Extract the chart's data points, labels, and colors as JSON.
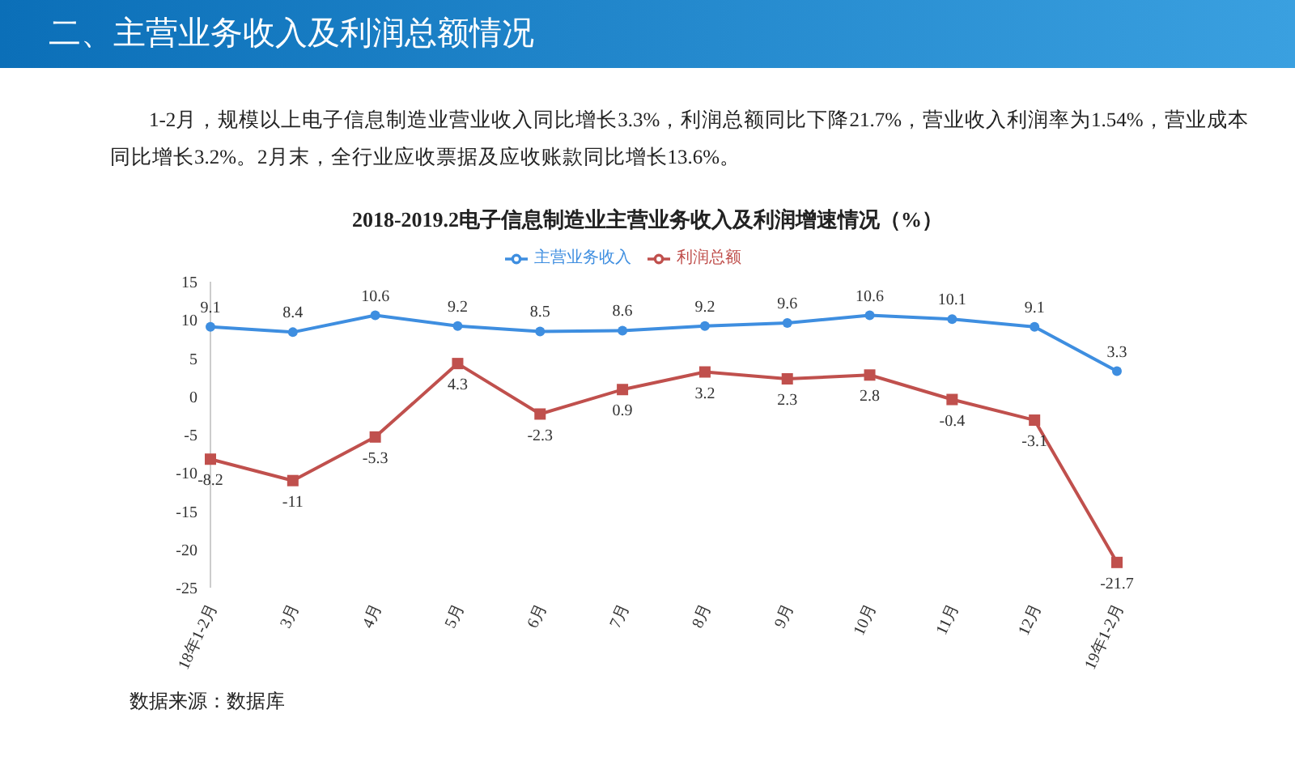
{
  "chart_data": {
    "type": "line",
    "title": "2018-2019.2电子信息制造业主营业务收入及利润增速情况（%）",
    "subtitle": "1-2月，规模以上电子信息制造业营业收入同比增长3.3%，利润总额同比下降21.7%，营业收入利润率为1.54%，营业成本同比增长3.2%。2月末，全行业应收票据及应收账款同比增长13.6%。",
    "annotations": [
      "二、主营业务收入及利润总额情况",
      "数据来源：数据库"
    ],
    "categories": [
      "18年1-2月",
      "3月",
      "4月",
      "5月",
      "6月",
      "7月",
      "8月",
      "9月",
      "10月",
      "11月",
      "12月",
      "19年1-2月"
    ],
    "series": [
      {
        "name": "主营业务收入",
        "color": "#3e8ee0",
        "marker": "circle",
        "values": [
          9.1,
          8.4,
          10.6,
          9.2,
          8.5,
          8.6,
          9.2,
          9.6,
          10.6,
          10.1,
          9.1,
          3.3
        ]
      },
      {
        "name": "利润总额",
        "color": "#c0504d",
        "marker": "square",
        "values": [
          -8.2,
          -11,
          -5.3,
          4.3,
          -2.3,
          0.9,
          3.2,
          2.3,
          2.8,
          -0.4,
          -3.1,
          -21.7
        ]
      }
    ],
    "ylim": [
      -25,
      15
    ],
    "yticks": [
      -25,
      -20,
      -15,
      -10,
      -5,
      0,
      5,
      10,
      15
    ],
    "grid": false,
    "legend": "top",
    "data_labels": true,
    "line_style": "solid"
  }
}
